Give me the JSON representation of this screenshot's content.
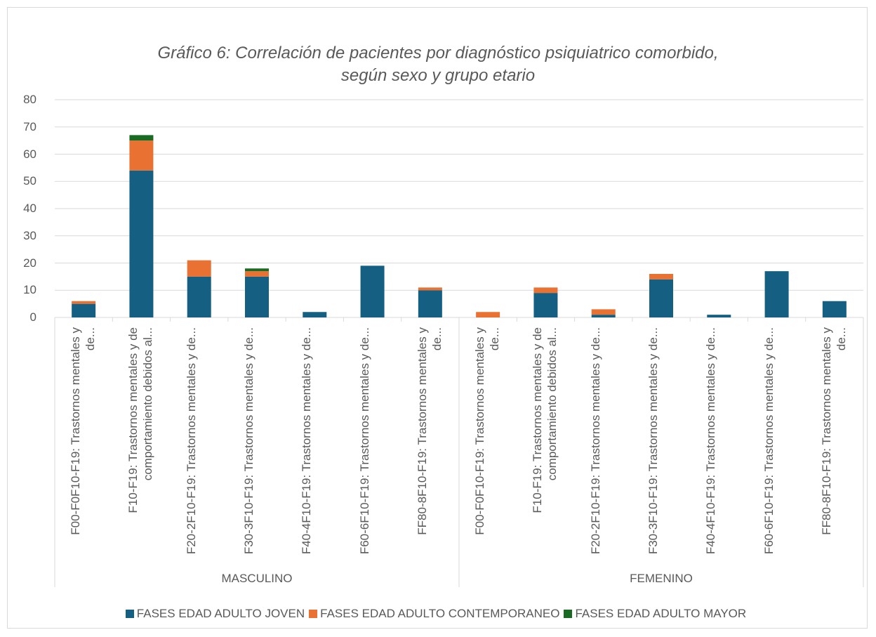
{
  "chart_data": {
    "type": "bar",
    "stacked": true,
    "title": "Gráfico 6: Correlación de pacientes por diagnóstico psiquiatrico comorbido, según sexo y grupo etario",
    "categories": [
      "F00-F0F10-F19: Trastornos mentales y de...",
      "F10-F19: Trastornos mentales y de comportamiento debidos al...",
      "F20-2F10-F19: Trastornos mentales y de...",
      "F30-3F10-F19: Trastornos mentales y de...",
      "F40-4F10-F19: Trastornos mentales y de...",
      "F60-6F10-F19: Trastornos mentales y de...",
      "FF80-8F10-F19: Trastornos mentales y de...",
      "F00-F0F10-F19: Trastornos mentales y de...",
      "F10-F19: Trastornos mentales y de comportamiento debidos al...",
      "F20-2F10-F19: Trastornos mentales y de...",
      "F30-3F10-F19: Trastornos mentales y de...",
      "F40-4F10-F19: Trastornos mentales y de...",
      "F60-6F10-F19: Trastornos mentales y de...",
      "FF80-8F10-F19: Trastornos mentales y de..."
    ],
    "groups": [
      "MASCULINO",
      "FEMENINO"
    ],
    "series": [
      {
        "name": "FASES EDAD ADULTO JOVEN",
        "color": "#156082",
        "values": [
          5,
          54,
          15,
          15,
          2,
          19,
          10,
          0,
          9,
          1,
          14,
          1,
          17,
          6
        ]
      },
      {
        "name": "FASES EDAD ADULTO CONTEMPORANEO",
        "color": "#e97132",
        "values": [
          1,
          11,
          6,
          2,
          0,
          0,
          1,
          2,
          2,
          2,
          2,
          0,
          0,
          0
        ]
      },
      {
        "name": "FASES EDAD ADULTO MAYOR",
        "color": "#196b24",
        "values": [
          0,
          2,
          0,
          1,
          0,
          0,
          0,
          0,
          0,
          0,
          0,
          0,
          0,
          0
        ]
      }
    ],
    "ylim": [
      0,
      80
    ],
    "yticks": [
      0,
      10,
      20,
      30,
      40,
      50,
      60,
      70,
      80
    ],
    "grid": true,
    "legend": "bottom"
  }
}
